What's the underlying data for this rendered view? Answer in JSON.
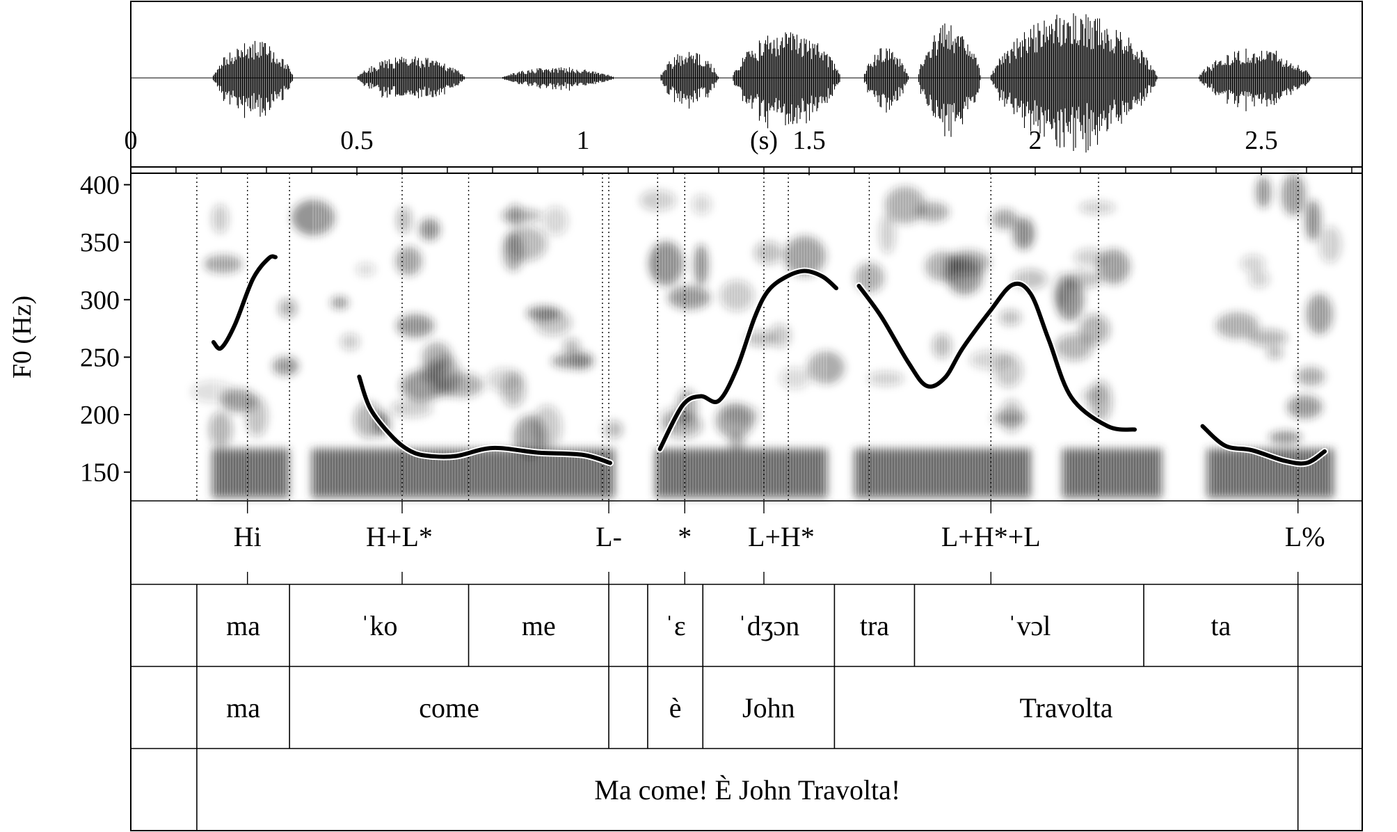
{
  "chart_data": {
    "type": "line",
    "x_label": "(s)",
    "x_range": [
      0,
      2.72
    ],
    "x_ticks": [
      "0",
      "0.5",
      "1",
      "1.5",
      "2",
      "2.5"
    ],
    "y_label": "F0 (Hz)",
    "y_range": [
      125,
      410
    ],
    "y_ticks": [
      "150",
      "200",
      "250",
      "300",
      "350",
      "400"
    ],
    "boundaries": [
      0.146,
      0.351,
      0.747,
      1.043,
      1.165,
      1.454,
      1.633,
      2.14,
      2.581
    ],
    "spectrogram_spans": [
      [
        0.18,
        0.35
      ],
      [
        0.4,
        1.07
      ],
      [
        1.16,
        1.54
      ],
      [
        1.6,
        1.99
      ],
      [
        2.06,
        2.28
      ],
      [
        2.38,
        2.66
      ]
    ],
    "waveform_segments": [
      {
        "start": 0.18,
        "end": 0.36,
        "amp": 0.55
      },
      {
        "start": 0.5,
        "end": 0.74,
        "amp": 0.32
      },
      {
        "start": 0.82,
        "end": 1.07,
        "amp": 0.16
      },
      {
        "start": 1.17,
        "end": 1.3,
        "amp": 0.4
      },
      {
        "start": 1.33,
        "end": 1.57,
        "amp": 0.7
      },
      {
        "start": 1.62,
        "end": 1.72,
        "amp": 0.45
      },
      {
        "start": 1.74,
        "end": 1.88,
        "amp": 0.8
      },
      {
        "start": 1.9,
        "end": 2.27,
        "amp": 0.95
      },
      {
        "start": 2.36,
        "end": 2.61,
        "amp": 0.45
      }
    ],
    "f0_contours": [
      {
        "t": [
          0.183,
          0.2,
          0.23,
          0.27,
          0.305,
          0.32
        ],
        "hz": [
          263,
          258,
          278,
          318,
          336,
          337
        ]
      },
      {
        "t": [
          0.505,
          0.53,
          0.58,
          0.62,
          0.66,
          0.72,
          0.8,
          0.9,
          1.0,
          1.06
        ],
        "hz": [
          233,
          205,
          180,
          168,
          164,
          164,
          171,
          167,
          165,
          158
        ]
      },
      {
        "t": [
          1.17,
          1.22,
          1.26,
          1.3,
          1.34,
          1.38,
          1.41,
          1.45,
          1.49,
          1.53,
          1.56
        ],
        "hz": [
          170,
          208,
          216,
          212,
          240,
          285,
          308,
          320,
          325,
          320,
          310
        ]
      },
      {
        "t": [
          1.61,
          1.66,
          1.72,
          1.76,
          1.8,
          1.84,
          1.9,
          1.95,
          1.99,
          2.03,
          2.08,
          2.16,
          2.22
        ],
        "hz": [
          312,
          285,
          245,
          225,
          232,
          258,
          290,
          313,
          305,
          265,
          215,
          190,
          187
        ]
      },
      {
        "t": [
          2.37,
          2.42,
          2.48,
          2.55,
          2.6,
          2.64
        ],
        "hz": [
          190,
          173,
          169,
          160,
          158,
          168
        ]
      }
    ],
    "tone_tier": [
      {
        "label": "Hi",
        "t": 0.258
      },
      {
        "label": "H+L*",
        "t": 0.6
      },
      {
        "label": "L-",
        "t": 1.057
      },
      {
        "label": "*",
        "t": 1.225
      },
      {
        "label": "L+H*",
        "t": 1.4
      },
      {
        "label": "L+H*+L",
        "t": 1.902
      },
      {
        "label": "L%",
        "t": 2.581
      }
    ],
    "syllable_tier": [
      {
        "label": "ma",
        "start": 0.146,
        "end": 0.351
      },
      {
        "label": "ˈko",
        "start": 0.351,
        "end": 0.747
      },
      {
        "label": "me",
        "start": 0.747,
        "end": 1.057
      },
      {
        "label": "ˈɛ",
        "start": 1.143,
        "end": 1.265
      },
      {
        "label": "ˈdʒɔn",
        "start": 1.265,
        "end": 1.556
      },
      {
        "label": "tra",
        "start": 1.556,
        "end": 1.733
      },
      {
        "label": "ˈvɔl",
        "start": 1.733,
        "end": 2.24
      },
      {
        "label": "ta",
        "start": 2.24,
        "end": 2.581
      }
    ],
    "word_tier": [
      {
        "label": "ma",
        "start": 0.146,
        "end": 0.351
      },
      {
        "label": "come",
        "start": 0.351,
        "end": 1.057
      },
      {
        "label": "è",
        "start": 1.143,
        "end": 1.265
      },
      {
        "label": "John",
        "start": 1.265,
        "end": 1.556
      },
      {
        "label": "Travolta",
        "start": 1.556,
        "end": 2.581
      }
    ],
    "utterance_tier": [
      {
        "label": "Ma come! È John Travolta!",
        "start": 0.146,
        "end": 2.581
      }
    ]
  }
}
